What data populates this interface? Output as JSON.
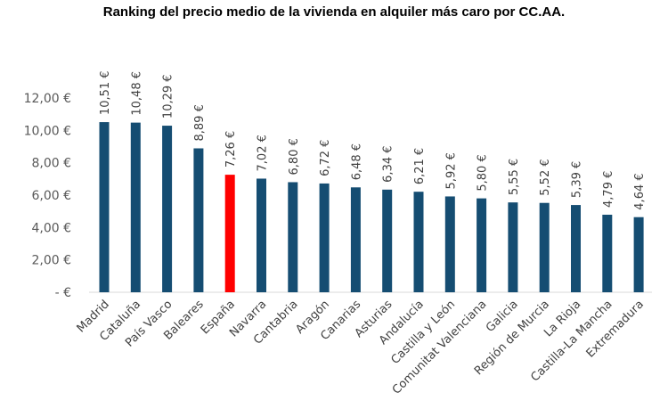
{
  "chart_data": {
    "type": "bar",
    "title": "Ranking del precio medio de la vivienda en alquiler más caro por CC.AA.",
    "xlabel": "",
    "ylabel": "",
    "categories": [
      "Madrid",
      "Cataluña",
      "País Vasco",
      "Baleares",
      "España",
      "Navarra",
      "Cantabria",
      "Aragón",
      "Canarias",
      "Asturias",
      "Andalucía",
      "Castilla y León",
      "Comunitat Valenciana",
      "Galicia",
      "Región de Murcia",
      "La Rioja",
      "Castilla-La Mancha",
      "Extremadura"
    ],
    "values": [
      10.51,
      10.48,
      10.29,
      8.89,
      7.26,
      7.02,
      6.8,
      6.72,
      6.48,
      6.34,
      6.21,
      5.92,
      5.8,
      5.55,
      5.52,
      5.39,
      4.79,
      4.64
    ],
    "data_labels": [
      "10,51 €",
      "10,48 €",
      "10,29 €",
      "8,89 €",
      "7,26 €",
      "7,02 €",
      "6,80 €",
      "6,72 €",
      "6,48 €",
      "6,34 €",
      "6,21 €",
      "5,92 €",
      "5,80 €",
      "5,55 €",
      "5,52 €",
      "5,39 €",
      "4,79 €",
      "4,64 €"
    ],
    "ylim": [
      0,
      12
    ],
    "yticks": [
      0,
      2,
      4,
      6,
      8,
      10,
      12
    ],
    "ytick_labels": [
      "-   €",
      "2,00 €",
      "4,00 €",
      "6,00 €",
      "8,00 €",
      "10,00 €",
      "12,00 €"
    ],
    "grid": false,
    "legend": "none",
    "colors": {
      "default": "#154D72",
      "highlight": "#FF0000",
      "highlight_category": "España"
    }
  }
}
